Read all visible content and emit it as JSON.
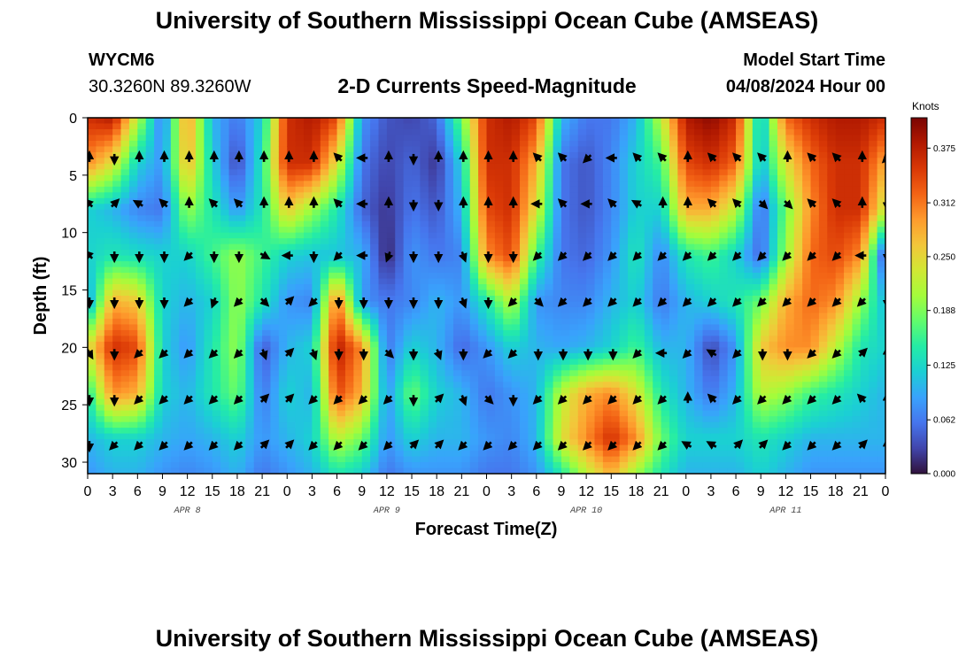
{
  "header": {
    "title": "University of Southern Mississippi Ocean Cube (AMSEAS)",
    "station_id": "WYCM6",
    "station_coords": "30.3260N  89.3260W",
    "model_start_label": "Model Start Time",
    "model_start_value": "04/08/2024 Hour 00"
  },
  "footer": {
    "title": "University of Southern Mississippi Ocean Cube (AMSEAS)"
  },
  "colorbar": {
    "unit": "Knots",
    "stops": [
      "#30123b",
      "#4145ab",
      "#4675ed",
      "#39a2fc",
      "#1bcfd4",
      "#24eca6",
      "#61fc6c",
      "#a4fc3b",
      "#d1e834",
      "#f3c63a",
      "#fe9b2d",
      "#f36315",
      "#d93806",
      "#b11901",
      "#7a0403"
    ]
  },
  "chart_data": {
    "type": "heatmap",
    "title": "2-D Currents Speed-Magnitude",
    "xlabel": "Forecast Time(Z)",
    "ylabel": "Depth (ft)",
    "x_range_hours": [
      0,
      96
    ],
    "ylim": [
      0,
      31
    ],
    "x_ticks": [
      "0",
      "3",
      "6",
      "9",
      "12",
      "15",
      "18",
      "21",
      "0",
      "3",
      "6",
      "9",
      "12",
      "15",
      "18",
      "21",
      "0",
      "3",
      "6",
      "9",
      "12",
      "15",
      "18",
      "21",
      "0",
      "3",
      "6",
      "9",
      "12",
      "15",
      "18",
      "21",
      "0"
    ],
    "day_labels": [
      {
        "hour": 12,
        "label": "APR 8"
      },
      {
        "hour": 36,
        "label": "APR 9"
      },
      {
        "hour": 60,
        "label": "APR 10"
      },
      {
        "hour": 84,
        "label": "APR 11"
      }
    ],
    "y_ticks": [
      0,
      5,
      10,
      15,
      20,
      25,
      30
    ],
    "colorbar_ticks": [
      "0.000",
      "0.062",
      "0.125",
      "0.188",
      "0.250",
      "0.312",
      "0.375"
    ],
    "color_range": [
      0,
      0.41
    ],
    "grid_hours": [
      0,
      3,
      6,
      9,
      12,
      15,
      18,
      21,
      24,
      27,
      30,
      33,
      36,
      39,
      42,
      45,
      48,
      51,
      54,
      57,
      60,
      63,
      66,
      69,
      72,
      75,
      78,
      81,
      84,
      87,
      90,
      93,
      96
    ],
    "grid_depths": [
      0,
      4,
      8,
      12,
      16,
      20,
      24,
      28,
      31
    ],
    "speed_knots": [
      [
        0.36,
        0.38,
        0.22,
        0.06,
        0.3,
        0.1,
        0.06,
        0.12,
        0.36,
        0.38,
        0.34,
        0.08,
        0.04,
        0.03,
        0.05,
        0.18,
        0.36,
        0.38,
        0.34,
        0.1,
        0.06,
        0.06,
        0.1,
        0.22,
        0.38,
        0.4,
        0.36,
        0.1,
        0.32,
        0.36,
        0.38,
        0.38,
        0.36
      ],
      [
        0.3,
        0.24,
        0.12,
        0.08,
        0.28,
        0.12,
        0.03,
        0.14,
        0.36,
        0.36,
        0.24,
        0.06,
        0.03,
        0.05,
        0.02,
        0.12,
        0.36,
        0.36,
        0.28,
        0.06,
        0.04,
        0.07,
        0.12,
        0.16,
        0.34,
        0.36,
        0.32,
        0.1,
        0.24,
        0.32,
        0.36,
        0.36,
        0.28
      ],
      [
        0.12,
        0.1,
        0.07,
        0.06,
        0.2,
        0.14,
        0.08,
        0.14,
        0.26,
        0.2,
        0.14,
        0.05,
        0.02,
        0.06,
        0.04,
        0.1,
        0.34,
        0.36,
        0.24,
        0.06,
        0.04,
        0.07,
        0.12,
        0.12,
        0.28,
        0.28,
        0.22,
        0.05,
        0.18,
        0.3,
        0.36,
        0.36,
        0.22
      ],
      [
        0.12,
        0.14,
        0.13,
        0.12,
        0.12,
        0.16,
        0.2,
        0.16,
        0.12,
        0.11,
        0.11,
        0.1,
        0.01,
        0.08,
        0.06,
        0.07,
        0.3,
        0.34,
        0.16,
        0.06,
        0.05,
        0.08,
        0.14,
        0.07,
        0.14,
        0.16,
        0.12,
        0.05,
        0.2,
        0.32,
        0.34,
        0.3,
        0.02
      ],
      [
        0.08,
        0.28,
        0.26,
        0.12,
        0.1,
        0.12,
        0.2,
        0.14,
        0.08,
        0.07,
        0.32,
        0.08,
        0.06,
        0.07,
        0.1,
        0.08,
        0.14,
        0.22,
        0.08,
        0.07,
        0.07,
        0.1,
        0.12,
        0.06,
        0.1,
        0.12,
        0.14,
        0.18,
        0.28,
        0.32,
        0.3,
        0.2,
        0.1
      ],
      [
        0.24,
        0.36,
        0.34,
        0.12,
        0.08,
        0.14,
        0.2,
        0.04,
        0.1,
        0.12,
        0.38,
        0.3,
        0.06,
        0.12,
        0.1,
        0.05,
        0.08,
        0.12,
        0.1,
        0.09,
        0.1,
        0.12,
        0.16,
        0.1,
        0.1,
        0.03,
        0.08,
        0.26,
        0.3,
        0.3,
        0.22,
        0.14,
        0.12
      ],
      [
        0.14,
        0.3,
        0.28,
        0.12,
        0.1,
        0.14,
        0.18,
        0.06,
        0.12,
        0.1,
        0.34,
        0.28,
        0.08,
        0.18,
        0.12,
        0.1,
        0.06,
        0.08,
        0.1,
        0.22,
        0.28,
        0.3,
        0.24,
        0.14,
        0.1,
        0.06,
        0.1,
        0.22,
        0.2,
        0.16,
        0.14,
        0.12,
        0.1
      ],
      [
        0.1,
        0.12,
        0.12,
        0.1,
        0.09,
        0.1,
        0.12,
        0.08,
        0.1,
        0.12,
        0.22,
        0.18,
        0.08,
        0.12,
        0.1,
        0.1,
        0.08,
        0.07,
        0.1,
        0.24,
        0.3,
        0.36,
        0.3,
        0.18,
        0.12,
        0.12,
        0.12,
        0.14,
        0.12,
        0.1,
        0.1,
        0.1,
        0.1
      ],
      [
        0.08,
        0.1,
        0.1,
        0.08,
        0.07,
        0.08,
        0.1,
        0.06,
        0.08,
        0.1,
        0.14,
        0.12,
        0.06,
        0.08,
        0.08,
        0.08,
        0.06,
        0.06,
        0.08,
        0.14,
        0.22,
        0.28,
        0.2,
        0.14,
        0.1,
        0.1,
        0.1,
        0.12,
        0.1,
        0.08,
        0.08,
        0.08,
        0.08
      ]
    ],
    "vector_depths": [
      3.5,
      7.5,
      12,
      16,
      20.5,
      24.5,
      28.5
    ],
    "vector_deg": [
      [
        0,
        180,
        0,
        0,
        0,
        0,
        0,
        0,
        0,
        0,
        315,
        270,
        0,
        180,
        0,
        0,
        0,
        0,
        315,
        315,
        225,
        270,
        315,
        315,
        0,
        315,
        315,
        315,
        0,
        315,
        315,
        0,
        225
      ],
      [
        315,
        45,
        300,
        315,
        0,
        315,
        315,
        0,
        0,
        0,
        315,
        270,
        0,
        180,
        180,
        0,
        0,
        0,
        270,
        315,
        270,
        315,
        300,
        0,
        0,
        315,
        315,
        135,
        135,
        315,
        315,
        0,
        180
      ],
      [
        315,
        180,
        180,
        180,
        225,
        180,
        180,
        120,
        270,
        180,
        225,
        270,
        200,
        180,
        180,
        160,
        180,
        180,
        225,
        225,
        225,
        225,
        225,
        225,
        225,
        225,
        225,
        225,
        225,
        225,
        225,
        270,
        180
      ],
      [
        180,
        180,
        180,
        180,
        225,
        200,
        225,
        135,
        45,
        225,
        180,
        180,
        180,
        180,
        180,
        160,
        180,
        225,
        135,
        225,
        225,
        225,
        225,
        225,
        225,
        225,
        225,
        225,
        225,
        225,
        225,
        225,
        180
      ],
      [
        150,
        180,
        225,
        225,
        225,
        225,
        225,
        160,
        45,
        160,
        180,
        180,
        135,
        180,
        160,
        180,
        225,
        225,
        180,
        180,
        180,
        180,
        225,
        270,
        225,
        300,
        225,
        180,
        180,
        225,
        225,
        45,
        0
      ],
      [
        180,
        180,
        225,
        225,
        225,
        225,
        225,
        45,
        45,
        225,
        225,
        225,
        225,
        180,
        45,
        160,
        135,
        180,
        225,
        225,
        225,
        225,
        225,
        225,
        0,
        315,
        225,
        225,
        225,
        225,
        225,
        315,
        0
      ],
      [
        180,
        225,
        225,
        225,
        225,
        225,
        225,
        45,
        45,
        225,
        225,
        225,
        225,
        45,
        45,
        225,
        225,
        225,
        225,
        225,
        225,
        225,
        225,
        225,
        300,
        300,
        45,
        45,
        225,
        225,
        225,
        45,
        0
      ]
    ]
  }
}
